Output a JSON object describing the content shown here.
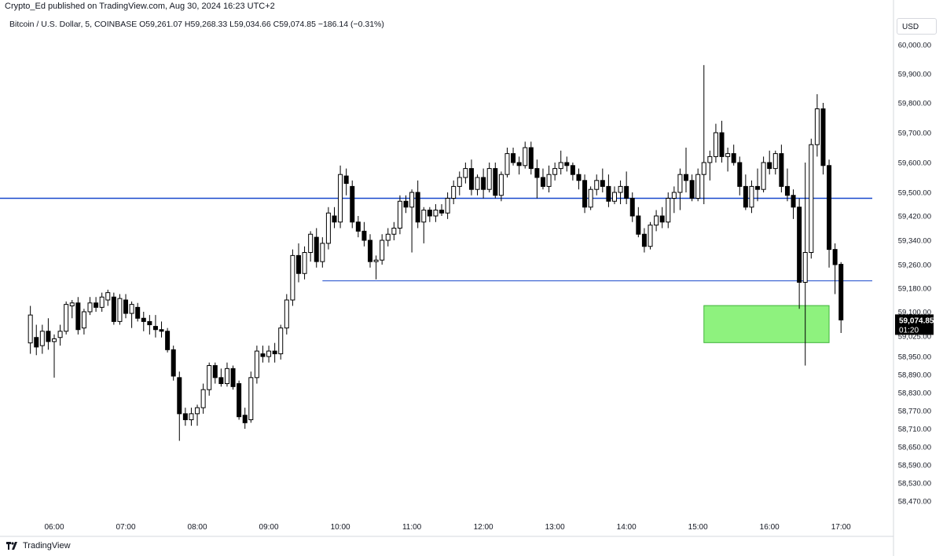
{
  "header": {
    "publish_line": "Crypto_Ed published on TradingView.com, Aug 30, 2024 16:23 UTC+2",
    "symbol_line": "Bitcoin / U.S. Dollar, 5, COINBASE  O59,261.07  H59,268.33  L59,034.66  C59,074.85  −186.14 (−0.31%)",
    "currency": "USD"
  },
  "footer": {
    "brand": "TradingView"
  },
  "price_badge": {
    "price": "59,074.85",
    "countdown": "01:20"
  },
  "colors": {
    "up_candle": "#ffffff",
    "down_candle": "#000000",
    "wick": "#000000",
    "level_line": "#1848cc",
    "zone_fill": "#8ef27e",
    "zone_border": "#3fb33a",
    "grid_border": "#d6d8de"
  },
  "chart_data": {
    "type": "candlestick",
    "symbol": "Bitcoin / U.S. Dollar",
    "interval": "5",
    "exchange": "COINBASE",
    "y_ticks": [
      "60,000.00",
      "59,900.00",
      "59,800.00",
      "59,700.00",
      "59,600.00",
      "59,500.00",
      "59,420.00",
      "59,340.00",
      "59,260.00",
      "59,180.00",
      "59,100.00",
      "59,025.00",
      "58,950.00",
      "58,890.00",
      "58,830.00",
      "58,770.00",
      "58,710.00",
      "58,650.00",
      "58,590.00",
      "58,530.00",
      "58,470.00"
    ],
    "x_ticks": [
      "06:00",
      "07:00",
      "08:00",
      "09:00",
      "10:00",
      "11:00",
      "12:00",
      "13:00",
      "14:00",
      "15:00",
      "16:00",
      "17:00"
    ],
    "horizontal_lines": [
      {
        "price": 59480
      },
      {
        "price": 59205,
        "from_time": "09:45"
      }
    ],
    "zone": {
      "from_time": "15:05",
      "to_time": "16:50",
      "price_top": 59121,
      "price_bottom": 59001
    },
    "candles": [
      {
        "t": "05:40",
        "o": 59000,
        "h": 59120,
        "l": 58960,
        "c": 59090
      },
      {
        "t": "05:45",
        "o": 59020,
        "h": 59060,
        "l": 58955,
        "c": 58985
      },
      {
        "t": "05:50",
        "o": 58990,
        "h": 59060,
        "l": 58960,
        "c": 59040
      },
      {
        "t": "05:55",
        "o": 59040,
        "h": 59080,
        "l": 58975,
        "c": 59005
      },
      {
        "t": "06:00",
        "o": 59005,
        "h": 59030,
        "l": 58880,
        "c": 59015
      },
      {
        "t": "06:05",
        "o": 59020,
        "h": 59060,
        "l": 58990,
        "c": 59040
      },
      {
        "t": "06:10",
        "o": 59040,
        "h": 59135,
        "l": 59030,
        "c": 59125
      },
      {
        "t": "06:15",
        "o": 59120,
        "h": 59140,
        "l": 59080,
        "c": 59130
      },
      {
        "t": "06:20",
        "o": 59130,
        "h": 59150,
        "l": 59030,
        "c": 59045
      },
      {
        "t": "06:25",
        "o": 59050,
        "h": 59110,
        "l": 59030,
        "c": 59100
      },
      {
        "t": "06:30",
        "o": 59100,
        "h": 59150,
        "l": 59090,
        "c": 59130
      },
      {
        "t": "06:35",
        "o": 59130,
        "h": 59150,
        "l": 59100,
        "c": 59115
      },
      {
        "t": "06:40",
        "o": 59115,
        "h": 59165,
        "l": 59100,
        "c": 59150
      },
      {
        "t": "06:45",
        "o": 59140,
        "h": 59175,
        "l": 59120,
        "c": 59165
      },
      {
        "t": "06:50",
        "o": 59150,
        "h": 59165,
        "l": 59060,
        "c": 59070
      },
      {
        "t": "06:55",
        "o": 59070,
        "h": 59160,
        "l": 59060,
        "c": 59145
      },
      {
        "t": "07:00",
        "o": 59140,
        "h": 59160,
        "l": 59080,
        "c": 59095
      },
      {
        "t": "07:05",
        "o": 59095,
        "h": 59135,
        "l": 59050,
        "c": 59125
      },
      {
        "t": "07:10",
        "o": 59115,
        "h": 59130,
        "l": 59070,
        "c": 59080
      },
      {
        "t": "07:15",
        "o": 59080,
        "h": 59100,
        "l": 59040,
        "c": 59070
      },
      {
        "t": "07:20",
        "o": 59070,
        "h": 59090,
        "l": 59030,
        "c": 59060
      },
      {
        "t": "07:25",
        "o": 59055,
        "h": 59090,
        "l": 59020,
        "c": 59045
      },
      {
        "t": "07:30",
        "o": 59045,
        "h": 59070,
        "l": 59020,
        "c": 59040
      },
      {
        "t": "07:35",
        "o": 59040,
        "h": 59050,
        "l": 58965,
        "c": 58975
      },
      {
        "t": "07:40",
        "o": 58975,
        "h": 58990,
        "l": 58870,
        "c": 58885
      },
      {
        "t": "07:45",
        "o": 58880,
        "h": 58900,
        "l": 58670,
        "c": 58760
      },
      {
        "t": "07:50",
        "o": 58760,
        "h": 58780,
        "l": 58720,
        "c": 58740
      },
      {
        "t": "07:55",
        "o": 58740,
        "h": 58780,
        "l": 58720,
        "c": 58760
      },
      {
        "t": "08:00",
        "o": 58760,
        "h": 58790,
        "l": 58720,
        "c": 58780
      },
      {
        "t": "08:05",
        "o": 58780,
        "h": 58860,
        "l": 58760,
        "c": 58840
      },
      {
        "t": "08:10",
        "o": 58840,
        "h": 58930,
        "l": 58820,
        "c": 58920
      },
      {
        "t": "08:15",
        "o": 58920,
        "h": 58930,
        "l": 58860,
        "c": 58880
      },
      {
        "t": "08:20",
        "o": 58880,
        "h": 58910,
        "l": 58850,
        "c": 58860
      },
      {
        "t": "08:25",
        "o": 58860,
        "h": 58930,
        "l": 58850,
        "c": 58910
      },
      {
        "t": "08:30",
        "o": 58910,
        "h": 58920,
        "l": 58840,
        "c": 58850
      },
      {
        "t": "08:35",
        "o": 58860,
        "h": 58870,
        "l": 58740,
        "c": 58750
      },
      {
        "t": "08:40",
        "o": 58755,
        "h": 58780,
        "l": 58710,
        "c": 58730
      },
      {
        "t": "08:45",
        "o": 58740,
        "h": 58900,
        "l": 58730,
        "c": 58880
      },
      {
        "t": "08:50",
        "o": 58880,
        "h": 58990,
        "l": 58860,
        "c": 58970
      },
      {
        "t": "08:55",
        "o": 58960,
        "h": 58990,
        "l": 58930,
        "c": 58950
      },
      {
        "t": "09:00",
        "o": 58950,
        "h": 58990,
        "l": 58930,
        "c": 58970
      },
      {
        "t": "09:05",
        "o": 58970,
        "h": 59000,
        "l": 58930,
        "c": 58960
      },
      {
        "t": "09:10",
        "o": 58960,
        "h": 59060,
        "l": 58940,
        "c": 59050
      },
      {
        "t": "09:15",
        "o": 59050,
        "h": 59160,
        "l": 59030,
        "c": 59140
      },
      {
        "t": "09:20",
        "o": 59140,
        "h": 59310,
        "l": 59120,
        "c": 59290
      },
      {
        "t": "09:25",
        "o": 59290,
        "h": 59330,
        "l": 59200,
        "c": 59230
      },
      {
        "t": "09:30",
        "o": 59230,
        "h": 59320,
        "l": 59210,
        "c": 59300
      },
      {
        "t": "09:35",
        "o": 59300,
        "h": 59370,
        "l": 59270,
        "c": 59360
      },
      {
        "t": "09:40",
        "o": 59350,
        "h": 59380,
        "l": 59250,
        "c": 59270
      },
      {
        "t": "09:45",
        "o": 59270,
        "h": 59350,
        "l": 59250,
        "c": 59330
      },
      {
        "t": "09:50",
        "o": 59330,
        "h": 59450,
        "l": 59310,
        "c": 59430
      },
      {
        "t": "09:55",
        "o": 59420,
        "h": 59450,
        "l": 59380,
        "c": 59400
      },
      {
        "t": "10:00",
        "o": 59400,
        "h": 59590,
        "l": 59380,
        "c": 59560
      },
      {
        "t": "10:05",
        "o": 59555,
        "h": 59580,
        "l": 59490,
        "c": 59530
      },
      {
        "t": "10:10",
        "o": 59520,
        "h": 59540,
        "l": 59380,
        "c": 59400
      },
      {
        "t": "10:15",
        "o": 59400,
        "h": 59420,
        "l": 59350,
        "c": 59370
      },
      {
        "t": "10:20",
        "o": 59370,
        "h": 59400,
        "l": 59320,
        "c": 59340
      },
      {
        "t": "10:25",
        "o": 59340,
        "h": 59360,
        "l": 59250,
        "c": 59270
      },
      {
        "t": "10:30",
        "o": 59270,
        "h": 59290,
        "l": 59210,
        "c": 59275
      },
      {
        "t": "10:35",
        "o": 59275,
        "h": 59360,
        "l": 59260,
        "c": 59340
      },
      {
        "t": "10:40",
        "o": 59340,
        "h": 59380,
        "l": 59320,
        "c": 59360
      },
      {
        "t": "10:45",
        "o": 59360,
        "h": 59400,
        "l": 59340,
        "c": 59380
      },
      {
        "t": "10:50",
        "o": 59380,
        "h": 59490,
        "l": 59360,
        "c": 59470
      },
      {
        "t": "10:55",
        "o": 59470,
        "h": 59490,
        "l": 59430,
        "c": 59450
      },
      {
        "t": "11:00",
        "o": 59450,
        "h": 59510,
        "l": 59300,
        "c": 59500
      },
      {
        "t": "11:05",
        "o": 59500,
        "h": 59540,
        "l": 59380,
        "c": 59400
      },
      {
        "t": "11:10",
        "o": 59400,
        "h": 59450,
        "l": 59330,
        "c": 59440
      },
      {
        "t": "11:15",
        "o": 59440,
        "h": 59450,
        "l": 59400,
        "c": 59420
      },
      {
        "t": "11:20",
        "o": 59420,
        "h": 59460,
        "l": 59400,
        "c": 59440
      },
      {
        "t": "11:25",
        "o": 59440,
        "h": 59460,
        "l": 59420,
        "c": 59430
      },
      {
        "t": "11:30",
        "o": 59430,
        "h": 59500,
        "l": 59410,
        "c": 59480
      },
      {
        "t": "11:35",
        "o": 59480,
        "h": 59540,
        "l": 59460,
        "c": 59520
      },
      {
        "t": "11:40",
        "o": 59520,
        "h": 59570,
        "l": 59490,
        "c": 59550
      },
      {
        "t": "11:45",
        "o": 59550,
        "h": 59600,
        "l": 59530,
        "c": 59580
      },
      {
        "t": "11:50",
        "o": 59580,
        "h": 59610,
        "l": 59490,
        "c": 59510
      },
      {
        "t": "11:55",
        "o": 59510,
        "h": 59560,
        "l": 59490,
        "c": 59550
      },
      {
        "t": "12:00",
        "o": 59550,
        "h": 59580,
        "l": 59480,
        "c": 59510
      },
      {
        "t": "12:05",
        "o": 59510,
        "h": 59600,
        "l": 59500,
        "c": 59580
      },
      {
        "t": "12:10",
        "o": 59580,
        "h": 59600,
        "l": 59480,
        "c": 59490
      },
      {
        "t": "12:15",
        "o": 59490,
        "h": 59570,
        "l": 59470,
        "c": 59560
      },
      {
        "t": "12:20",
        "o": 59560,
        "h": 59650,
        "l": 59550,
        "c": 59630
      },
      {
        "t": "12:25",
        "o": 59630,
        "h": 59650,
        "l": 59590,
        "c": 59600
      },
      {
        "t": "12:30",
        "o": 59600,
        "h": 59620,
        "l": 59560,
        "c": 59590
      },
      {
        "t": "12:35",
        "o": 59590,
        "h": 59670,
        "l": 59580,
        "c": 59650
      },
      {
        "t": "12:40",
        "o": 59650,
        "h": 59670,
        "l": 59560,
        "c": 59580
      },
      {
        "t": "12:45",
        "o": 59580,
        "h": 59610,
        "l": 59480,
        "c": 59550
      },
      {
        "t": "12:50",
        "o": 59550,
        "h": 59580,
        "l": 59510,
        "c": 59520
      },
      {
        "t": "12:55",
        "o": 59520,
        "h": 59590,
        "l": 59500,
        "c": 59560
      },
      {
        "t": "13:00",
        "o": 59560,
        "h": 59600,
        "l": 59540,
        "c": 59580
      },
      {
        "t": "13:05",
        "o": 59580,
        "h": 59640,
        "l": 59560,
        "c": 59600
      },
      {
        "t": "13:10",
        "o": 59600,
        "h": 59620,
        "l": 59570,
        "c": 59590
      },
      {
        "t": "13:15",
        "o": 59590,
        "h": 59600,
        "l": 59540,
        "c": 59560
      },
      {
        "t": "13:20",
        "o": 59560,
        "h": 59580,
        "l": 59510,
        "c": 59540
      },
      {
        "t": "13:25",
        "o": 59540,
        "h": 59560,
        "l": 59430,
        "c": 59450
      },
      {
        "t": "13:30",
        "o": 59450,
        "h": 59520,
        "l": 59440,
        "c": 59510
      },
      {
        "t": "13:35",
        "o": 59510,
        "h": 59560,
        "l": 59490,
        "c": 59540
      },
      {
        "t": "13:40",
        "o": 59540,
        "h": 59580,
        "l": 59500,
        "c": 59520
      },
      {
        "t": "13:45",
        "o": 59520,
        "h": 59560,
        "l": 59450,
        "c": 59470
      },
      {
        "t": "13:50",
        "o": 59470,
        "h": 59520,
        "l": 59460,
        "c": 59500
      },
      {
        "t": "13:55",
        "o": 59500,
        "h": 59540,
        "l": 59460,
        "c": 59520
      },
      {
        "t": "14:00",
        "o": 59520,
        "h": 59570,
        "l": 59460,
        "c": 59480
      },
      {
        "t": "14:05",
        "o": 59480,
        "h": 59500,
        "l": 59400,
        "c": 59420
      },
      {
        "t": "14:10",
        "o": 59420,
        "h": 59450,
        "l": 59350,
        "c": 59360
      },
      {
        "t": "14:15",
        "o": 59360,
        "h": 59380,
        "l": 59300,
        "c": 59320
      },
      {
        "t": "14:20",
        "o": 59320,
        "h": 59400,
        "l": 59310,
        "c": 59390
      },
      {
        "t": "14:25",
        "o": 59390,
        "h": 59440,
        "l": 59370,
        "c": 59420
      },
      {
        "t": "14:30",
        "o": 59420,
        "h": 59450,
        "l": 59380,
        "c": 59400
      },
      {
        "t": "14:35",
        "o": 59400,
        "h": 59500,
        "l": 59380,
        "c": 59480
      },
      {
        "t": "14:40",
        "o": 59480,
        "h": 59520,
        "l": 59430,
        "c": 59500
      },
      {
        "t": "14:45",
        "o": 59500,
        "h": 59580,
        "l": 59440,
        "c": 59560
      },
      {
        "t": "14:50",
        "o": 59560,
        "h": 59650,
        "l": 59500,
        "c": 59540
      },
      {
        "t": "14:55",
        "o": 59540,
        "h": 59560,
        "l": 59470,
        "c": 59480
      },
      {
        "t": "15:00",
        "o": 59480,
        "h": 59580,
        "l": 59470,
        "c": 59560
      },
      {
        "t": "15:05",
        "o": 59560,
        "h": 59930,
        "l": 59460,
        "c": 59600
      },
      {
        "t": "15:10",
        "o": 59600,
        "h": 59640,
        "l": 59540,
        "c": 59620
      },
      {
        "t": "15:15",
        "o": 59620,
        "h": 59730,
        "l": 59600,
        "c": 59700
      },
      {
        "t": "15:20",
        "o": 59700,
        "h": 59740,
        "l": 59600,
        "c": 59620
      },
      {
        "t": "15:25",
        "o": 59620,
        "h": 59650,
        "l": 59570,
        "c": 59630
      },
      {
        "t": "15:30",
        "o": 59630,
        "h": 59660,
        "l": 59590,
        "c": 59600
      },
      {
        "t": "15:35",
        "o": 59600,
        "h": 59620,
        "l": 59490,
        "c": 59520
      },
      {
        "t": "15:40",
        "o": 59520,
        "h": 59560,
        "l": 59440,
        "c": 59450
      },
      {
        "t": "15:45",
        "o": 59450,
        "h": 59540,
        "l": 59430,
        "c": 59520
      },
      {
        "t": "15:50",
        "o": 59520,
        "h": 59580,
        "l": 59470,
        "c": 59510
      },
      {
        "t": "15:55",
        "o": 59510,
        "h": 59620,
        "l": 59500,
        "c": 59600
      },
      {
        "t": "16:00",
        "o": 59600,
        "h": 59640,
        "l": 59560,
        "c": 59580
      },
      {
        "t": "16:05",
        "o": 59580,
        "h": 59640,
        "l": 59560,
        "c": 59630
      },
      {
        "t": "16:10",
        "o": 59630,
        "h": 59660,
        "l": 59500,
        "c": 59520
      },
      {
        "t": "16:15",
        "o": 59520,
        "h": 59580,
        "l": 59470,
        "c": 59490
      },
      {
        "t": "16:20",
        "o": 59490,
        "h": 59510,
        "l": 59410,
        "c": 59450
      },
      {
        "t": "16:25",
        "o": 59450,
        "h": 59480,
        "l": 59110,
        "c": 59200
      },
      {
        "t": "16:30",
        "o": 59200,
        "h": 59600,
        "l": 58920,
        "c": 59300
      },
      {
        "t": "16:35",
        "o": 59300,
        "h": 59680,
        "l": 59280,
        "c": 59660
      },
      {
        "t": "16:40",
        "o": 59660,
        "h": 59830,
        "l": 59620,
        "c": 59780
      },
      {
        "t": "16:45",
        "o": 59780,
        "h": 59800,
        "l": 59560,
        "c": 59590
      },
      {
        "t": "16:50",
        "o": 59590,
        "h": 59610,
        "l": 59250,
        "c": 59310
      },
      {
        "t": "16:55",
        "o": 59310,
        "h": 59330,
        "l": 59160,
        "c": 59260
      },
      {
        "t": "17:00",
        "o": 59261.07,
        "h": 59268.33,
        "l": 59034.66,
        "c": 59074.85
      }
    ]
  }
}
